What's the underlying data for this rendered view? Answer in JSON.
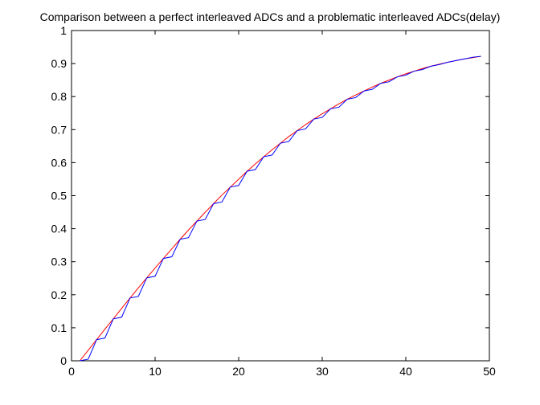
{
  "chart_data": {
    "type": "line",
    "title": "Comparison between a perfect interleaved ADCs and a problematic interleaved ADCs(delay)",
    "xlabel": "",
    "ylabel": "",
    "xlim": [
      0,
      50
    ],
    "ylim": [
      0,
      1
    ],
    "xticks": [
      0,
      10,
      20,
      30,
      40,
      50
    ],
    "yticks": [
      0,
      0.1,
      0.2,
      0.3,
      0.4,
      0.5,
      0.6,
      0.7,
      0.8,
      0.9,
      1
    ],
    "xtick_labels": [
      "0",
      "10",
      "20",
      "30",
      "40",
      "50"
    ],
    "ytick_labels": [
      "0",
      "0.1",
      "0.2",
      "0.3",
      "0.4",
      "0.5",
      "0.6",
      "0.7",
      "0.8",
      "0.9",
      "1"
    ],
    "grid": false,
    "legend": null,
    "x": [
      1,
      2,
      3,
      4,
      5,
      6,
      7,
      8,
      9,
      10,
      11,
      12,
      13,
      14,
      15,
      16,
      17,
      18,
      19,
      20,
      21,
      22,
      23,
      24,
      25,
      26,
      27,
      28,
      29,
      30,
      31,
      32,
      33,
      34,
      35,
      36,
      37,
      38,
      39,
      40,
      41,
      42,
      43,
      44,
      45,
      46,
      47,
      48,
      49
    ],
    "series": [
      {
        "color": "#ff0000",
        "values": [
          0,
          0.032,
          0.064,
          0.096,
          0.127,
          0.159,
          0.19,
          0.221,
          0.251,
          0.281,
          0.31,
          0.339,
          0.368,
          0.396,
          0.423,
          0.45,
          0.476,
          0.502,
          0.526,
          0.55,
          0.574,
          0.596,
          0.618,
          0.639,
          0.659,
          0.679,
          0.697,
          0.715,
          0.732,
          0.748,
          0.763,
          0.778,
          0.792,
          0.805,
          0.817,
          0.829,
          0.84,
          0.85,
          0.86,
          0.869,
          0.877,
          0.885,
          0.892,
          0.898,
          0.904,
          0.909,
          0.914,
          0.918,
          0.922
        ]
      },
      {
        "color": "#0000ff",
        "values": [
          0,
          0.005,
          0.064,
          0.069,
          0.127,
          0.132,
          0.19,
          0.195,
          0.251,
          0.256,
          0.31,
          0.315,
          0.368,
          0.373,
          0.423,
          0.428,
          0.476,
          0.481,
          0.526,
          0.531,
          0.574,
          0.579,
          0.618,
          0.623,
          0.659,
          0.664,
          0.697,
          0.702,
          0.732,
          0.737,
          0.763,
          0.768,
          0.792,
          0.797,
          0.817,
          0.822,
          0.84,
          0.845,
          0.86,
          0.865,
          0.877,
          0.882,
          0.892,
          0.897,
          0.904,
          0.909,
          0.914,
          0.919,
          0.922
        ]
      }
    ]
  }
}
